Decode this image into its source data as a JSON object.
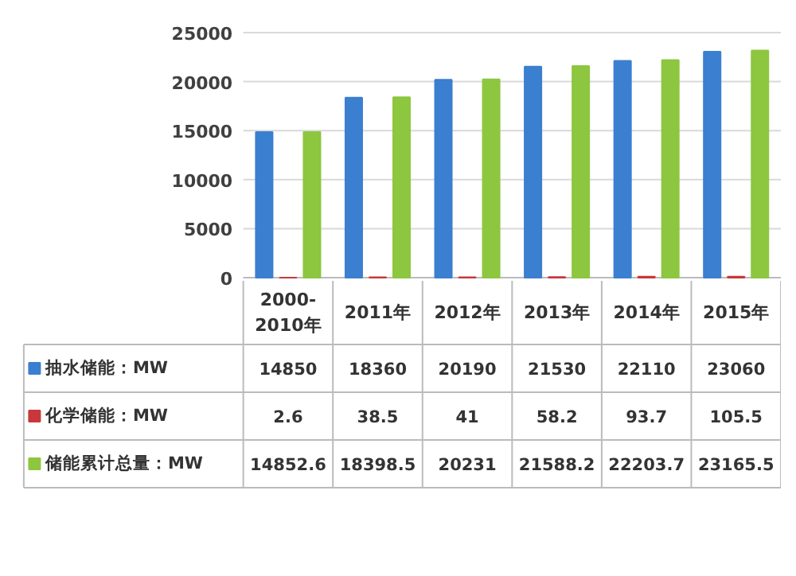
{
  "chart_data": {
    "type": "bar",
    "categories": [
      "2000-2010年",
      "2011年",
      "2012年",
      "2013年",
      "2014年",
      "2015年"
    ],
    "series": [
      {
        "name": "抽水储能：MW",
        "color": "#3b7fd0",
        "values": [
          14850,
          18360,
          20190,
          21530,
          22110,
          23060
        ]
      },
      {
        "name": "化学储能：MW",
        "color": "#c8383a",
        "values": [
          2.6,
          38.5,
          41,
          58.2,
          93.7,
          105.5
        ]
      },
      {
        "name": "储能累计总量：MW",
        "color": "#8dc63f",
        "values": [
          14852.6,
          18398.5,
          20231,
          21588.2,
          22203.7,
          23165.5
        ]
      }
    ],
    "ylim": [
      0,
      25000
    ],
    "yticks": [
      0,
      5000,
      10000,
      15000,
      20000,
      25000
    ],
    "grid": "y",
    "data_labels": true,
    "legend": "bottom left"
  }
}
